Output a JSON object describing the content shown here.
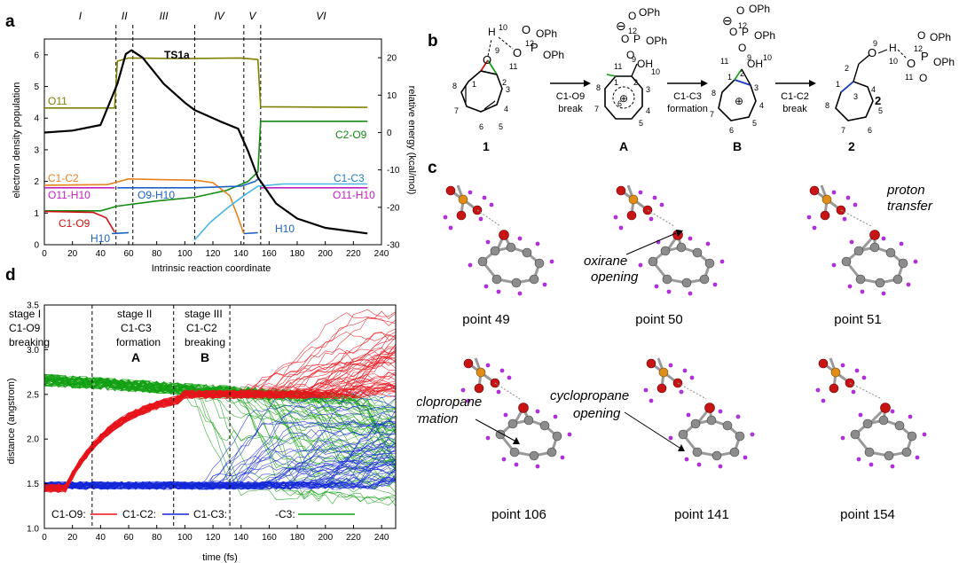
{
  "panel_a": {
    "letter": "a",
    "stages": [
      "I",
      "II",
      "III",
      "IV",
      "V",
      "VI"
    ],
    "ts_label": "TS1a",
    "xlabel": "Intrinsic reaction coordinate",
    "ylabel_left": "electron density population",
    "ylabel_right": "relative energy (kcal/mol)",
    "curve_labels": {
      "o11": "O11",
      "c2o9": "C2-O9",
      "c1c2": "C1-C2",
      "c1c3": "C1-C3",
      "o11h10_left": "O11-H10",
      "o9h10": "O9-H10",
      "o11h10_right": "O11-H10",
      "c1o9": "C1-O9",
      "h10_left": "H10",
      "h10_right": "H10"
    }
  },
  "panel_b": {
    "letter": "b",
    "arrows": [
      {
        "top": "C1-O9",
        "bottom": "break"
      },
      {
        "top": "C1-C3",
        "bottom": "formation"
      },
      {
        "top": "C1-C2",
        "bottom": "break"
      }
    ],
    "molecules": [
      "1",
      "A",
      "B",
      "2"
    ],
    "substituent": "OPh"
  },
  "panel_c": {
    "letter": "c",
    "snapshots": [
      "point 49",
      "point 50",
      "point 51",
      "point 106",
      "point 141",
      "point 154"
    ],
    "annotations": {
      "oxirane": [
        "oxirane",
        "opening"
      ],
      "proton": [
        "proton",
        "transfer"
      ],
      "cp_formation": [
        "cyclopropane",
        "formation"
      ],
      "cp_opening": [
        "cyclopropane",
        "opening"
      ]
    }
  },
  "panel_d": {
    "letter": "d",
    "stages": [
      {
        "line1": "stage I",
        "line2": "C1-O9",
        "line3": "breaking"
      },
      {
        "line1": "stage II",
        "line2": "C1-C3",
        "line3": "formation"
      },
      {
        "line1": "stage III",
        "line2": "C1-C2",
        "line3": "breaking"
      }
    ],
    "stage_marks": [
      "A",
      "B"
    ],
    "xlabel": "time (fs)",
    "ylabel": "distance (angstrom)",
    "legend": [
      {
        "label": "C1-O9:",
        "color": "#e8141b"
      },
      {
        "label": "C1-C2:",
        "color": "#1428d8"
      },
      {
        "label": "C1-C3:",
        "color": "#12a012"
      },
      {
        "label": "-C3:",
        "color": "#12a012"
      }
    ]
  },
  "colors": {
    "energy": "#000000",
    "o11": "#808000",
    "c2o9": "#138a13",
    "c1c2": "#e8821e",
    "c1c3": "#4ab4e6",
    "o11h10": "#c21fc2",
    "o9h10": "#1c62c8",
    "c1o9": "#d01010",
    "h10": "#1c62c8"
  },
  "chart_data": [
    {
      "type": "line",
      "title": "",
      "xlabel": "Intrinsic reaction coordinate",
      "ylabel": "electron density population",
      "y2label": "relative energy (kcal/mol)",
      "xlim": [
        0,
        240
      ],
      "ylim": [
        0,
        6.5
      ],
      "y2lim": [
        -30,
        25
      ],
      "xticks": [
        0,
        20,
        40,
        60,
        80,
        100,
        120,
        140,
        160,
        180,
        200,
        220,
        240
      ],
      "yticks": [
        0,
        1,
        2,
        3,
        4,
        5,
        6
      ],
      "y2ticks": [
        -30,
        -20,
        -10,
        0,
        10,
        20
      ],
      "stage_boundaries": [
        51,
        63,
        107,
        142,
        154
      ],
      "series": [
        {
          "name": "O11",
          "key": "o11",
          "axis": "left",
          "points": [
            [
              0,
              4.32
            ],
            [
              50,
              4.32
            ],
            [
              52,
              5.8
            ],
            [
              60,
              5.9
            ],
            [
              100,
              5.88
            ],
            [
              140,
              5.9
            ],
            [
              152,
              5.85
            ],
            [
              154,
              4.36
            ],
            [
              230,
              4.34
            ]
          ]
        },
        {
          "name": "C2-O9",
          "key": "c2o9",
          "axis": "left",
          "points": [
            [
              0,
              1.07
            ],
            [
              40,
              1.07
            ],
            [
              52,
              1.22
            ],
            [
              80,
              1.38
            ],
            [
              107,
              1.5
            ],
            [
              130,
              1.72
            ],
            [
              145,
              2.0
            ],
            [
              152,
              2.3
            ],
            [
              154,
              3.9
            ],
            [
              230,
              3.9
            ]
          ]
        },
        {
          "name": "C1-C2",
          "key": "c1c2",
          "axis": "left",
          "points": [
            [
              0,
              1.88
            ],
            [
              45,
              1.9
            ],
            [
              60,
              2.08
            ],
            [
              90,
              2.05
            ],
            [
              107,
              2.04
            ],
            [
              120,
              1.96
            ],
            [
              132,
              1.55
            ],
            [
              138,
              0.85
            ],
            [
              142,
              0.35
            ]
          ]
        },
        {
          "name": "C1-C3",
          "key": "c1c3",
          "axis": "left",
          "points": [
            [
              107,
              0.15
            ],
            [
              118,
              0.7
            ],
            [
              130,
              1.15
            ],
            [
              142,
              1.55
            ],
            [
              152,
              1.85
            ],
            [
              170,
              1.92
            ],
            [
              230,
              1.92
            ]
          ]
        },
        {
          "name": "O11-H10",
          "key": "o11h10",
          "axis": "left",
          "points": [
            [
              0,
              1.8
            ],
            [
              50,
              1.8
            ]
          ]
        },
        {
          "name": "O9-H10",
          "key": "o9h10",
          "axis": "left",
          "points": [
            [
              52,
              1.8
            ],
            [
              80,
              1.8
            ],
            [
              107,
              1.8
            ],
            [
              140,
              1.85
            ],
            [
              150,
              2.0
            ],
            [
              153,
              2.1
            ]
          ]
        },
        {
          "name": "O11-H10",
          "key": "o11h10",
          "axis": "left",
          "points": [
            [
              154,
              1.8
            ],
            [
              230,
              1.8
            ]
          ]
        },
        {
          "name": "C1-O9",
          "key": "c1o9",
          "axis": "left",
          "points": [
            [
              0,
              1.05
            ],
            [
              35,
              1.02
            ],
            [
              44,
              0.85
            ],
            [
              50,
              0.4
            ]
          ]
        },
        {
          "name": "H10",
          "key": "h10",
          "axis": "left",
          "points": [
            [
              48,
              0.35
            ],
            [
              60,
              0.38
            ]
          ]
        },
        {
          "name": "H10",
          "key": "h10",
          "axis": "left",
          "points": [
            [
              142,
              0.35
            ],
            [
              152,
              0.38
            ]
          ]
        },
        {
          "name": "",
          "key": "energy",
          "axis": "right",
          "points": [
            [
              0,
              0
            ],
            [
              20,
              0.5
            ],
            [
              40,
              2
            ],
            [
              52,
              13
            ],
            [
              58,
              21
            ],
            [
              62,
              22
            ],
            [
              70,
              20
            ],
            [
              85,
              13
            ],
            [
              100,
              8
            ],
            [
              107,
              6
            ],
            [
              125,
              3
            ],
            [
              138,
              1
            ],
            [
              145,
              -5
            ],
            [
              152,
              -12
            ],
            [
              165,
              -19
            ],
            [
              180,
              -23
            ],
            [
              200,
              -25.5
            ],
            [
              230,
              -27
            ]
          ]
        }
      ]
    },
    {
      "type": "line",
      "title": "",
      "xlabel": "time (fs)",
      "ylabel": "distance (angstrom)",
      "xlim": [
        0,
        250
      ],
      "ylim": [
        1.0,
        3.5
      ],
      "xticks": [
        0,
        20,
        40,
        60,
        80,
        100,
        120,
        140,
        160,
        180,
        200,
        220,
        240
      ],
      "yticks": [
        1.0,
        1.5,
        2.0,
        2.5,
        3.0,
        3.5
      ],
      "stage_boundaries": [
        34,
        92,
        132
      ],
      "series": [
        {
          "name": "C1-O9",
          "key": "c1o9",
          "trajectory_start": 1.45,
          "trajectory_end_range": [
            2.4,
            3.5
          ]
        },
        {
          "name": "C1-C2",
          "key": "c1c2",
          "trajectory_start": 1.5,
          "trajectory_end_range": [
            1.5,
            2.5
          ]
        },
        {
          "name": "C1-C3",
          "key": "c1c3",
          "trajectory_start": 2.62,
          "trajectory_end_range": [
            1.45,
            2.6
          ]
        }
      ]
    }
  ]
}
